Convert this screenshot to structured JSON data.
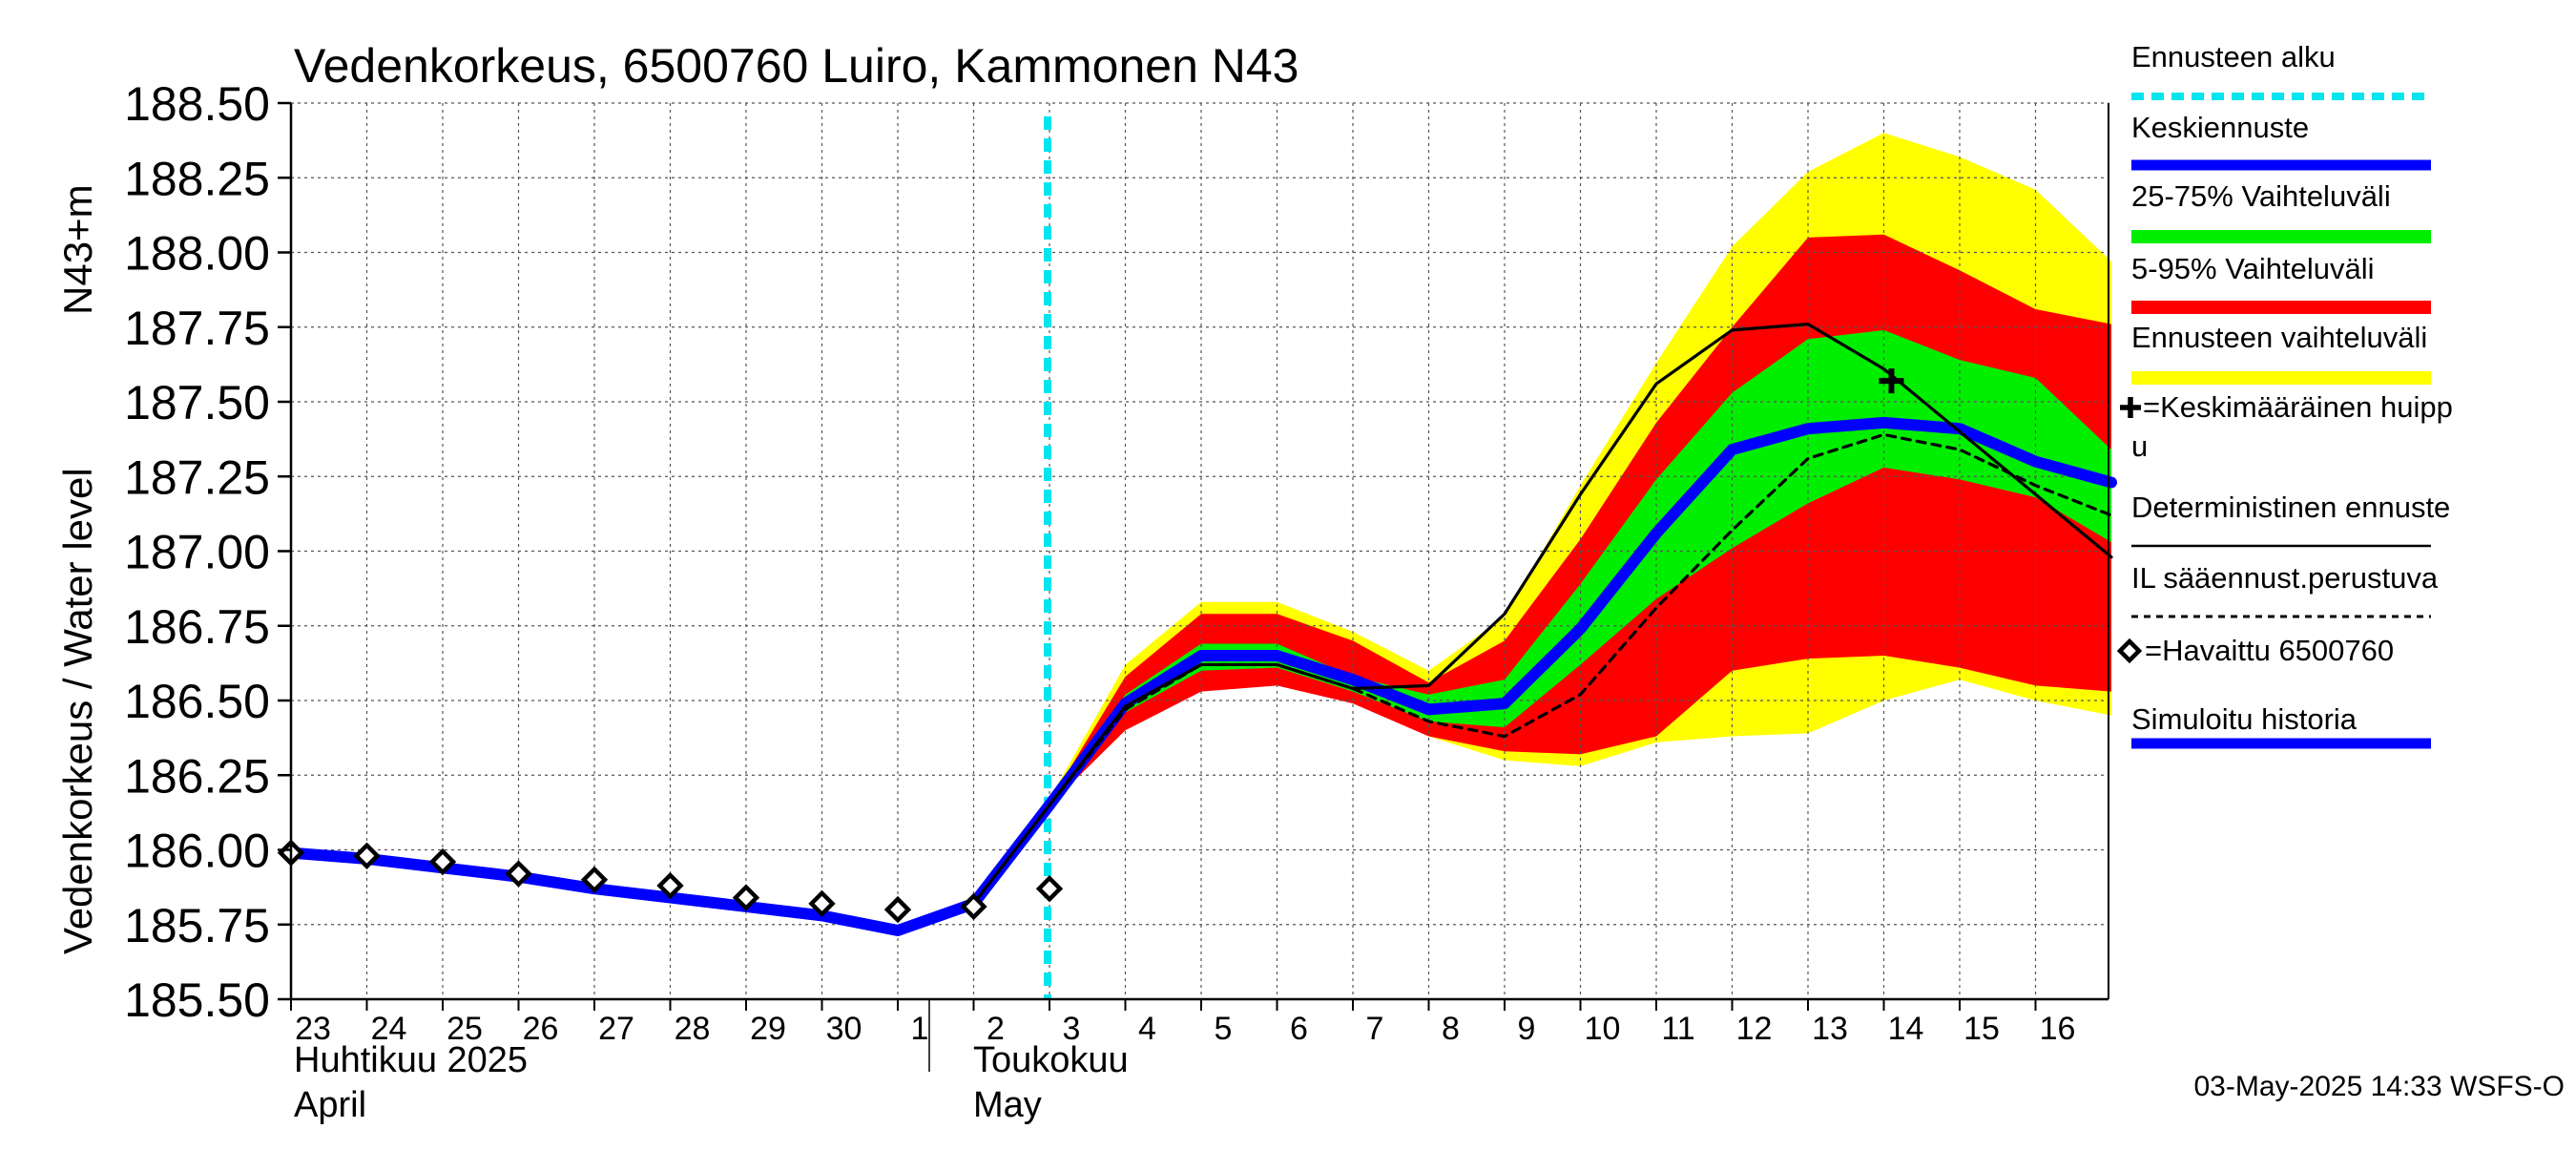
{
  "chart_data": {
    "type": "line",
    "title": "Vedenkorkeus, 6500760 Luiro, Kammonen N43",
    "ylabel_primary": "Vedenkorkeus / Water level",
    "ylabel_secondary": "N43+m",
    "ylim": [
      185.5,
      188.5
    ],
    "yticks": [
      "185.50",
      "185.75",
      "186.00",
      "186.25",
      "186.50",
      "186.75",
      "187.00",
      "187.25",
      "187.50",
      "187.75",
      "188.00",
      "188.25",
      "188.50"
    ],
    "x_day_labels": [
      "23",
      "24",
      "25",
      "26",
      "27",
      "28",
      "29",
      "30",
      "1",
      "2",
      "3",
      "4",
      "5",
      "6",
      "7",
      "8",
      "9",
      "10",
      "11",
      "12",
      "13",
      "14",
      "15",
      "16"
    ],
    "month_labels": [
      {
        "line1": "Huhtikuu  2025",
        "line2": "April",
        "at_day": 0
      },
      {
        "line1": "Toukokuu",
        "line2": "May",
        "at_day": 9
      }
    ],
    "month_separator_day": 8,
    "forecast_start_day": 10,
    "grid": true,
    "series": [
      {
        "name": "Ennusteen vaihteluväli",
        "kind": "band",
        "color": "#ffff00",
        "x": [
          10,
          11,
          12,
          13,
          14,
          15,
          16,
          17,
          18,
          19,
          20,
          21,
          22,
          23,
          24
        ],
        "low": [
          186.14,
          186.45,
          186.55,
          186.56,
          186.5,
          186.38,
          186.3,
          186.28,
          186.36,
          186.38,
          186.39,
          186.5,
          186.57,
          186.5,
          186.45
        ],
        "high": [
          186.17,
          186.62,
          186.83,
          186.83,
          186.73,
          186.6,
          186.78,
          187.22,
          187.63,
          188.02,
          188.27,
          188.4,
          188.32,
          188.21,
          187.97
        ]
      },
      {
        "name": "5-95% Vaihteluväli",
        "kind": "band",
        "color": "#ff0000",
        "x": [
          10,
          11,
          12,
          13,
          14,
          15,
          16,
          17,
          18,
          19,
          20,
          21,
          22,
          23,
          24
        ],
        "low": [
          186.15,
          186.4,
          186.53,
          186.55,
          186.49,
          186.38,
          186.33,
          186.32,
          186.38,
          186.6,
          186.64,
          186.65,
          186.61,
          186.55,
          186.53
        ],
        "high": [
          186.16,
          186.58,
          186.79,
          186.79,
          186.7,
          186.56,
          186.7,
          187.04,
          187.43,
          187.75,
          188.05,
          188.06,
          187.94,
          187.81,
          187.76
        ]
      },
      {
        "name": "25-75% Vaihteluväli",
        "kind": "band",
        "color": "#00ee00",
        "x": [
          10,
          11,
          12,
          13,
          14,
          15,
          16,
          17,
          18,
          19,
          20,
          21,
          22,
          23,
          24
        ],
        "low": [
          186.15,
          186.46,
          186.6,
          186.61,
          186.53,
          186.43,
          186.41,
          186.62,
          186.84,
          187.01,
          187.16,
          187.28,
          187.24,
          187.18,
          187.03
        ],
        "high": [
          186.16,
          186.52,
          186.69,
          186.69,
          186.58,
          186.52,
          186.57,
          186.89,
          187.24,
          187.53,
          187.71,
          187.74,
          187.64,
          187.58,
          187.34
        ]
      },
      {
        "name": "Simuloitu historia",
        "kind": "line",
        "color": "#0000ff",
        "x": [
          0,
          1,
          2,
          3,
          4,
          5,
          6,
          7,
          8,
          9,
          10
        ],
        "y": [
          185.99,
          185.97,
          185.94,
          185.91,
          185.87,
          185.84,
          185.81,
          185.78,
          185.73,
          185.82,
          186.15
        ]
      },
      {
        "name": "Keskiennuste",
        "kind": "line",
        "color": "#0000ff",
        "x": [
          10,
          11,
          12,
          13,
          14,
          15,
          16,
          17,
          18,
          19,
          20,
          21,
          22,
          23,
          24
        ],
        "y": [
          186.15,
          186.49,
          186.65,
          186.65,
          186.57,
          186.47,
          186.49,
          186.74,
          187.06,
          187.34,
          187.41,
          187.43,
          187.41,
          187.3,
          187.23
        ]
      },
      {
        "name": "Deterministinen ennuste",
        "kind": "line",
        "color": "#000000",
        "x": [
          9,
          10,
          11,
          12,
          13,
          14,
          15,
          16,
          17,
          18,
          19,
          20,
          21,
          22,
          23,
          24
        ],
        "y": [
          185.82,
          186.15,
          186.48,
          186.62,
          186.62,
          186.54,
          186.55,
          186.79,
          187.19,
          187.56,
          187.74,
          187.76,
          187.61,
          187.4,
          187.19,
          186.98
        ]
      },
      {
        "name": "IL sääennust.perustuva",
        "kind": "dashed",
        "color": "#000000",
        "x": [
          10,
          11,
          12,
          13,
          14,
          15,
          16,
          17,
          18,
          19,
          20,
          21,
          22,
          23,
          24
        ],
        "y": [
          186.15,
          186.47,
          186.62,
          186.62,
          186.54,
          186.43,
          186.38,
          186.52,
          186.81,
          187.07,
          187.31,
          187.39,
          187.34,
          187.22,
          187.12
        ]
      },
      {
        "name": "=Havaittu 6500760",
        "kind": "markers",
        "color": "#000000",
        "x": [
          0,
          1,
          2,
          3,
          4,
          5,
          6,
          7,
          8,
          9,
          10
        ],
        "y": [
          185.99,
          185.98,
          185.96,
          185.92,
          185.9,
          185.88,
          185.84,
          185.82,
          185.8,
          185.81,
          185.87
        ]
      },
      {
        "name": "=Keskimääräinen huippu",
        "kind": "plus",
        "color": "#000000",
        "x": [
          21
        ],
        "y": [
          187.57
        ]
      }
    ],
    "legend": {
      "placement": "right",
      "items": [
        {
          "label": "Ennusteen alku",
          "style": "dotted",
          "color": "#00e5ee"
        },
        {
          "label": "Keskiennuste",
          "style": "line",
          "color": "#0000ff"
        },
        {
          "label": "25-75% Vaihteluväli",
          "style": "band",
          "color": "#00ee00"
        },
        {
          "label": "5-95% Vaihteluväli",
          "style": "band",
          "color": "#ff0000"
        },
        {
          "label": "Ennusteen vaihteluväli",
          "style": "band",
          "color": "#ffff00"
        },
        {
          "label": "=Keskimääräinen huippu",
          "style": "plus",
          "color": "#000000"
        },
        {
          "label": "Deterministinen ennuste",
          "style": "line-thin",
          "color": "#000000"
        },
        {
          "label": "IL sääennust.perustuva",
          "style": "dashed",
          "color": "#000000"
        },
        {
          "label": "=Havaittu 6500760",
          "style": "marker",
          "color": "#000000"
        },
        {
          "label": "Simuloitu historia",
          "style": "line",
          "color": "#0000ff"
        }
      ]
    }
  },
  "footer": {
    "timestamp": "03-May-2025 14:33 WSFS-O"
  }
}
